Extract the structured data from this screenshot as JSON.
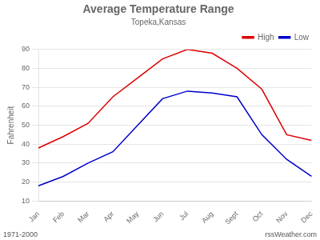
{
  "chart_data": {
    "type": "line",
    "title": "Average Temperature Range",
    "subtitle": "Topeka,Kansas",
    "ylabel": "Fahrenheit",
    "annotations": [
      "1971-2000",
      "rssWeather.com"
    ],
    "categories": [
      "Jan",
      "Feb",
      "Mar",
      "Apr",
      "May",
      "Jun",
      "Jul",
      "Aug",
      "Sept",
      "Oct",
      "Nov",
      "Dec"
    ],
    "series": [
      {
        "name": "High",
        "color": "#dd0000",
        "values": [
          38,
          44,
          51,
          65,
          75,
          85,
          90,
          88,
          80,
          69,
          45,
          42
        ]
      },
      {
        "name": "Low",
        "color": "#0000cc",
        "values": [
          18,
          23,
          30,
          36,
          50,
          64,
          68,
          67,
          65,
          45,
          32,
          23
        ]
      }
    ],
    "ylim": [
      10,
      90
    ],
    "yticks": [
      10,
      20,
      30,
      40,
      50,
      60,
      70,
      80,
      90
    ],
    "grid": true,
    "legend": "upper right"
  }
}
